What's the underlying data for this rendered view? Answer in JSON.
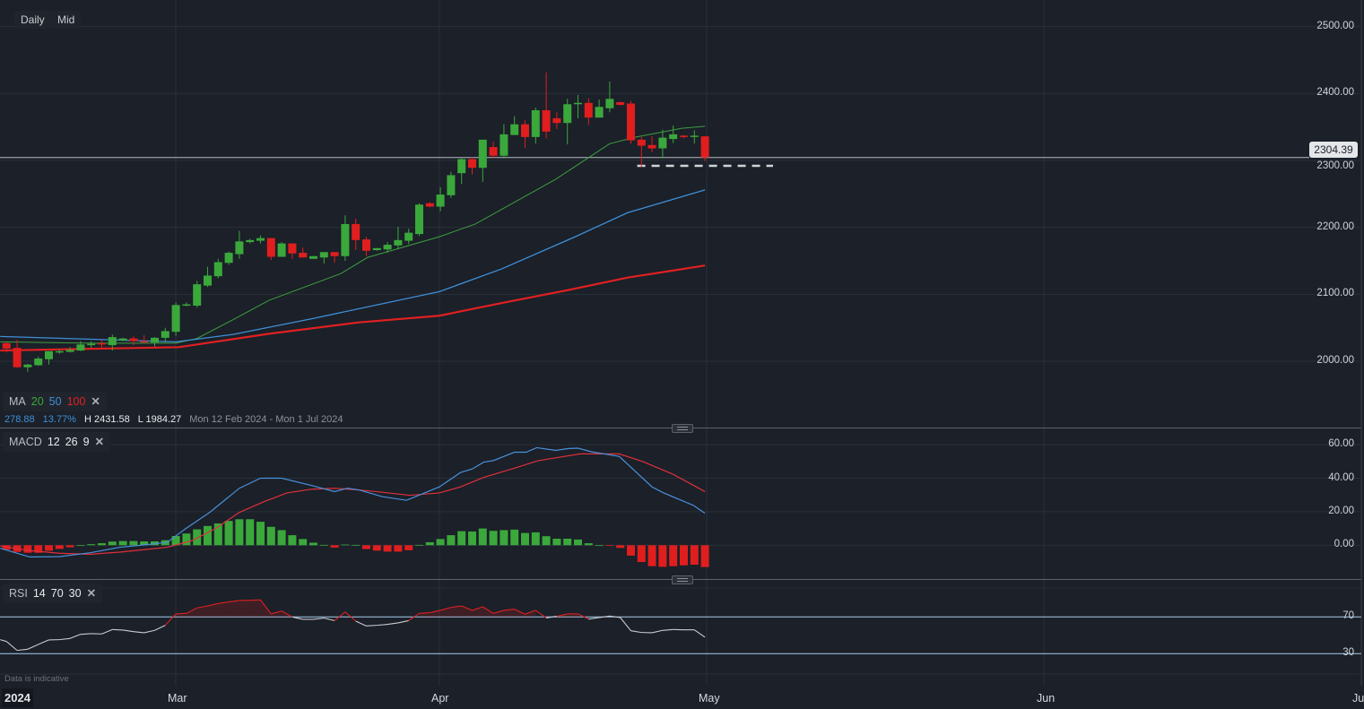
{
  "toolbar": {
    "interval": "Daily",
    "price_type": "Mid"
  },
  "ma_legend": {
    "label": "MA",
    "p1": "20",
    "p2": "50",
    "p3": "100",
    "close": "✕"
  },
  "macd_legend": {
    "label": "MACD",
    "fast": "12",
    "slow": "26",
    "signal": "9",
    "close": "✕"
  },
  "rsi_legend": {
    "label": "RSI",
    "period": "14",
    "upper": "70",
    "lower": "30",
    "close": "✕"
  },
  "range_info": {
    "change": "278.88",
    "change_pct": "13.77%",
    "high": "H 2431.58",
    "low": "L 1984.27",
    "dates": "Mon 12 Feb 2024 - Mon 1 Jul 2024"
  },
  "current_price": "2304.39",
  "footer": {
    "disclaimer": "Data is indicative",
    "year": "2024"
  },
  "colors": {
    "up": "#3ba83b",
    "down": "#e01e1e",
    "ma20": "#3f9e3f",
    "ma50": "#3f8fd6",
    "ma100": "#e02020",
    "macd": "#4a90d9",
    "signal": "#e0303a",
    "rsi": "#c9ccd1",
    "background": "#1b2029"
  },
  "chart_data": [
    {
      "type": "candlestick",
      "title": "Daily Mid",
      "x_labels": [
        "Mar",
        "Apr",
        "May",
        "Jun",
        "Ju"
      ],
      "y_ticks": [
        "2000.00",
        "2100.00",
        "2200.00",
        "2300.00",
        "2400.00",
        "2500.00"
      ],
      "ylim": [
        1940,
        2535
      ],
      "ohlc": [
        [
          2027,
          2028,
          2013,
          2019
        ],
        [
          2020,
          2032,
          1990,
          1991
        ],
        [
          1991,
          1996,
          1984,
          1995
        ],
        [
          1994,
          2007,
          1993,
          2004
        ],
        [
          2003,
          2015,
          1995,
          2015
        ],
        [
          2013,
          2018,
          2011,
          2015
        ],
        [
          2014,
          2021,
          2013,
          2017
        ],
        [
          2016,
          2030,
          2015,
          2025
        ],
        [
          2024,
          2030,
          2020,
          2026
        ],
        [
          2027,
          2032,
          2018,
          2025
        ],
        [
          2024,
          2040,
          2016,
          2036
        ],
        [
          2031,
          2035,
          2030,
          2034
        ],
        [
          2034,
          2037,
          2024,
          2030
        ],
        [
          2030,
          2039,
          2027,
          2028
        ],
        [
          2028,
          2036,
          2022,
          2035
        ],
        [
          2035,
          2050,
          2028,
          2045
        ],
        [
          2044,
          2088,
          2038,
          2084
        ],
        [
          2083,
          2088,
          2082,
          2085
        ],
        [
          2083,
          2120,
          2080,
          2115
        ],
        [
          2113,
          2141,
          2111,
          2128
        ],
        [
          2127,
          2153,
          2124,
          2148
        ],
        [
          2147,
          2164,
          2144,
          2162
        ],
        [
          2160,
          2195,
          2153,
          2179
        ],
        [
          2178,
          2183,
          2176,
          2181
        ],
        [
          2180,
          2188,
          2176,
          2184
        ],
        [
          2184,
          2184,
          2151,
          2156
        ],
        [
          2156,
          2178,
          2156,
          2176
        ],
        [
          2176,
          2176,
          2153,
          2161
        ],
        [
          2162,
          2170,
          2155,
          2155
        ],
        [
          2153,
          2157,
          2153,
          2157
        ],
        [
          2155,
          2163,
          2146,
          2163
        ],
        [
          2163,
          2163,
          2147,
          2157
        ],
        [
          2157,
          2218,
          2150,
          2205
        ],
        [
          2205,
          2213,
          2166,
          2181
        ],
        [
          2182,
          2186,
          2157,
          2165
        ],
        [
          2166,
          2169,
          2165,
          2169
        ],
        [
          2167,
          2178,
          2162,
          2174
        ],
        [
          2173,
          2201,
          2167,
          2181
        ],
        [
          2180,
          2198,
          2175,
          2192
        ],
        [
          2190,
          2236,
          2187,
          2234
        ],
        [
          2236,
          2238,
          2230,
          2231
        ],
        [
          2231,
          2260,
          2224,
          2249
        ],
        [
          2248,
          2283,
          2244,
          2278
        ],
        [
          2281,
          2303,
          2265,
          2302
        ],
        [
          2302,
          2305,
          2279,
          2289
        ],
        [
          2289,
          2331,
          2268,
          2331
        ],
        [
          2320,
          2328,
          2303,
          2307
        ],
        [
          2307,
          2354,
          2303,
          2339
        ],
        [
          2338,
          2366,
          2338,
          2354
        ],
        [
          2354,
          2360,
          2319,
          2335
        ],
        [
          2335,
          2379,
          2325,
          2375
        ],
        [
          2375,
          2431.58,
          2333,
          2343
        ],
        [
          2363,
          2372,
          2347,
          2356
        ],
        [
          2356,
          2392,
          2324,
          2384
        ],
        [
          2384,
          2398,
          2363,
          2386
        ],
        [
          2386,
          2393,
          2353,
          2364
        ],
        [
          2364,
          2391,
          2364,
          2380
        ],
        [
          2378,
          2418,
          2372,
          2392
        ],
        [
          2387,
          2388,
          2382,
          2383
        ],
        [
          2385,
          2389,
          2325,
          2330
        ],
        [
          2331,
          2335,
          2290,
          2322
        ],
        [
          2323,
          2336,
          2312,
          2318
        ],
        [
          2318,
          2346,
          2303,
          2334
        ],
        [
          2332,
          2352,
          2326,
          2339
        ],
        [
          2337,
          2338,
          2333,
          2335
        ],
        [
          2335,
          2345,
          2325,
          2337
        ],
        [
          2336,
          2336,
          2299,
          2304.39
        ]
      ],
      "support_level": 2292,
      "moving_averages": [
        {
          "name": "MA 20",
          "points": [
            [
              -0.6,
              2029
            ],
            [
              7.9,
              2027
            ],
            [
              16,
              2027
            ],
            [
              18,
              2034
            ],
            [
              21.4,
              2062
            ],
            [
              24.8,
              2091
            ],
            [
              31.6,
              2131
            ],
            [
              34.1,
              2155
            ],
            [
              40.9,
              2186
            ],
            [
              44.3,
              2205
            ],
            [
              48.5,
              2242
            ],
            [
              51.9,
              2272
            ],
            [
              57,
              2325
            ],
            [
              59.5,
              2335
            ],
            [
              63.8,
              2348
            ],
            [
              66,
              2351
            ]
          ]
        },
        {
          "name": "MA 50",
          "points": [
            [
              -0.6,
              2037
            ],
            [
              16,
              2029
            ],
            [
              21.4,
              2040
            ],
            [
              29,
              2064
            ],
            [
              40.9,
              2104
            ],
            [
              46.8,
              2138
            ],
            [
              53.6,
              2185
            ],
            [
              58.7,
              2222
            ],
            [
              66,
              2256
            ]
          ]
        },
        {
          "name": "MA 100",
          "points": [
            [
              -0.6,
              2016
            ],
            [
              16.3,
              2021
            ],
            [
              24.8,
              2041
            ],
            [
              33.3,
              2058
            ],
            [
              40.9,
              2068
            ],
            [
              46.8,
              2087
            ],
            [
              53.6,
              2108
            ],
            [
              58.7,
              2125
            ],
            [
              66,
              2143
            ]
          ]
        }
      ]
    },
    {
      "type": "bar+line",
      "title": "MACD 12 26 9",
      "y_ticks": [
        "0.00",
        "20.00",
        "40.00",
        "60.00"
      ],
      "histogram": [
        -2.7,
        -4,
        -4.5,
        -4.5,
        -3.3,
        -2.2,
        -1.2,
        0,
        0.6,
        1.2,
        2.2,
        2.5,
        2.5,
        2.3,
        2.3,
        3,
        5.5,
        7,
        9.5,
        11.5,
        13,
        14.5,
        15.5,
        15.5,
        14,
        11,
        9,
        6,
        3.7,
        1.5,
        0.2,
        -1.4,
        0.4,
        0.2,
        -2.3,
        -3.2,
        -3.8,
        -3.8,
        -3,
        0.2,
        1.8,
        3.7,
        6,
        8.4,
        8.2,
        10,
        8.6,
        9,
        9.3,
        7.3,
        7.7,
        5.4,
        3.9,
        3.9,
        3.4,
        1.2,
        0,
        -0.4,
        -1.6,
        -6.2,
        -10,
        -12.5,
        -12.9,
        -12.5,
        -12,
        -11.6,
        -13
      ],
      "macd": [
        [
          -0.6,
          -1.8
        ],
        [
          2.2,
          -7
        ],
        [
          5,
          -6.8
        ],
        [
          7.9,
          -4.5
        ],
        [
          10.7,
          -1.2
        ],
        [
          13.5,
          0.5
        ],
        [
          15.2,
          1.8
        ],
        [
          16.9,
          9.8
        ],
        [
          19.2,
          19.6
        ],
        [
          22,
          34
        ],
        [
          24,
          40
        ],
        [
          26,
          40
        ],
        [
          28.8,
          35.7
        ],
        [
          31,
          32
        ],
        [
          32.2,
          34
        ],
        [
          33.3,
          33
        ],
        [
          35.5,
          29
        ],
        [
          37.8,
          26.8
        ],
        [
          40.9,
          34.8
        ],
        [
          42.9,
          43.4
        ],
        [
          44,
          45.5
        ],
        [
          45.1,
          49.6
        ],
        [
          46,
          50.5
        ],
        [
          48,
          55.5
        ],
        [
          49.1,
          55.5
        ],
        [
          50.1,
          58.2
        ],
        [
          51.9,
          56.6
        ],
        [
          53.1,
          57.7
        ],
        [
          54,
          57.9
        ],
        [
          55.3,
          55.7
        ],
        [
          57.9,
          53
        ],
        [
          61,
          34.8
        ],
        [
          62.1,
          31.2
        ],
        [
          64.9,
          23.8
        ],
        [
          66,
          19.1
        ]
      ],
      "signal": [
        [
          -0.6,
          -0.4
        ],
        [
          2.2,
          -3.2
        ],
        [
          5,
          -4.8
        ],
        [
          7.9,
          -5.4
        ],
        [
          10.7,
          -4.1
        ],
        [
          13.5,
          -2.3
        ],
        [
          15.2,
          -1.2
        ],
        [
          17.5,
          2.7
        ],
        [
          19.7,
          9.8
        ],
        [
          22,
          19.6
        ],
        [
          24.3,
          25.9
        ],
        [
          26.5,
          31.2
        ],
        [
          28.8,
          33.4
        ],
        [
          31,
          34
        ],
        [
          33.3,
          33
        ],
        [
          35.5,
          31.6
        ],
        [
          38.1,
          29.8
        ],
        [
          40.9,
          31.2
        ],
        [
          42.9,
          34.8
        ],
        [
          45.1,
          40.5
        ],
        [
          48,
          46
        ],
        [
          50.2,
          50.4
        ],
        [
          54.2,
          54.5
        ],
        [
          57.9,
          54.5
        ],
        [
          60.1,
          50
        ],
        [
          63,
          42.3
        ],
        [
          66,
          32
        ]
      ],
      "ylim": [
        -20,
        70
      ]
    },
    {
      "type": "line",
      "title": "RSI 14 70 30",
      "y_ticks": [
        "70",
        "30"
      ],
      "levels": [
        70,
        30
      ],
      "values": [
        43.3,
        33.6,
        34.9,
        40,
        45,
        45.3,
        46.6,
        51.1,
        51.8,
        51.5,
        56.3,
        55.7,
        54,
        52.8,
        55.4,
        60.9,
        73.3,
        73.9,
        79.8,
        82,
        84.6,
        86.3,
        87.9,
        88.2,
        88.5,
        73.3,
        76.5,
        70,
        67.4,
        67.4,
        68.7,
        66,
        75.5,
        65.4,
        60.2,
        60.9,
        61.9,
        63.5,
        66,
        73.9,
        74.6,
        77.2,
        80.4,
        82,
        77.2,
        81,
        73.9,
        77.2,
        78.5,
        72.9,
        77.2,
        69,
        70.7,
        73.3,
        73.3,
        67.7,
        69.3,
        71,
        69.3,
        55,
        53.1,
        52.8,
        55.4,
        56.3,
        56,
        56,
        47.9
      ]
    }
  ]
}
